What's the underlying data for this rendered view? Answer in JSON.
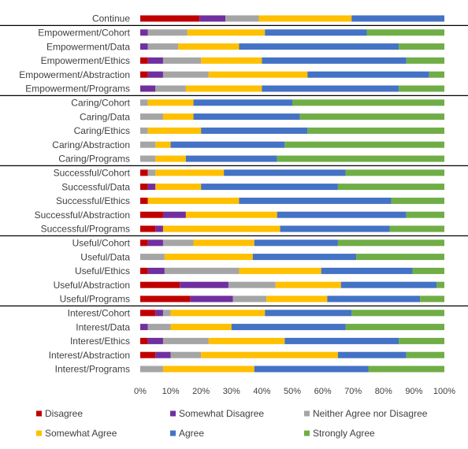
{
  "chart_data": {
    "type": "bar",
    "orientation": "horizontal",
    "stacked": "percent",
    "categories": [
      "Continue",
      "Empowerment/Cohort",
      "Empowerment/Data",
      "Empowerment/Ethics",
      "Empowerment/Abstraction",
      "Empowerment/Programs",
      "Caring/Cohort",
      "Caring/Data",
      "Caring/Ethics",
      "Caring/Abstraction",
      "Caring/Programs",
      "Successful/Cohort",
      "Successful/Data",
      "Successful/Ethics",
      "Successful/Abstraction",
      "Successful/Programs",
      "Useful/Cohort",
      "Useful/Data",
      "Useful/Ethics",
      "Useful/Abstraction",
      "Useful/Programs",
      "Interest/Cohort",
      "Interest/Data",
      "Interest/Ethics",
      "Interest/Abstraction",
      "Interest/Programs"
    ],
    "series": [
      {
        "name": "Disagree",
        "color": "#c00000",
        "values": [
          19.5,
          0,
          0,
          2.5,
          2.5,
          0,
          0,
          0,
          0,
          0,
          0,
          2.5,
          2.5,
          2.5,
          7.5,
          5,
          2.5,
          0,
          2.5,
          13,
          16.5,
          5,
          0,
          2.5,
          5,
          0
        ]
      },
      {
        "name": "Somewhat Disagree",
        "color": "#7030a0",
        "values": [
          8.5,
          2.5,
          2.5,
          5,
          5,
          5,
          0,
          0,
          0,
          0,
          0,
          0,
          2.5,
          0,
          7.5,
          2.5,
          5,
          0,
          5.5,
          16,
          14,
          2.5,
          2.5,
          5,
          5,
          0
        ]
      },
      {
        "name": "Neither Agree nor Disagree",
        "color": "#a5a5a5",
        "values": [
          11,
          13,
          10,
          12.5,
          15,
          10,
          2.5,
          7.5,
          2.5,
          5,
          5,
          2.5,
          0,
          0,
          0,
          0,
          10,
          8,
          24.5,
          15.5,
          11,
          2.5,
          7.5,
          15,
          10,
          7.5
        ]
      },
      {
        "name": "Somewhat Agree",
        "color": "#ffc000",
        "values": [
          30.5,
          25.5,
          20,
          20,
          32.5,
          25,
          15,
          10,
          17.5,
          5,
          10,
          22.5,
          15,
          30,
          30,
          38.5,
          20,
          29,
          27,
          21.5,
          20,
          31,
          20,
          25,
          45,
          30
        ]
      },
      {
        "name": "Agree",
        "color": "#4472c4",
        "values": [
          30.5,
          33.5,
          52.5,
          47.5,
          40,
          45,
          32.5,
          35,
          35,
          37.5,
          30,
          40,
          45,
          50,
          42.5,
          36,
          27.5,
          34,
          30,
          31.5,
          30.5,
          28.5,
          37.5,
          37.5,
          22.5,
          37.5
        ]
      },
      {
        "name": "Strongly Agree",
        "color": "#70ad47",
        "values": [
          0,
          25.5,
          15,
          12.5,
          5,
          15,
          50,
          47.5,
          45,
          52.5,
          55,
          32.5,
          35,
          17.5,
          12.5,
          18,
          35,
          29,
          10.5,
          2.5,
          8,
          30.5,
          32.5,
          15,
          12.5,
          25
        ]
      }
    ],
    "x_ticks": [
      "0%",
      "10%",
      "20%",
      "30%",
      "40%",
      "50%",
      "60%",
      "70%",
      "80%",
      "90%",
      "100%"
    ],
    "xlim": [
      0,
      100
    ],
    "group_dividers_after": [
      0,
      5,
      10,
      15,
      20
    ],
    "grid": false,
    "legend": {
      "position": "bottom",
      "columns": 3
    },
    "title": "",
    "xlabel": "",
    "ylabel": ""
  }
}
